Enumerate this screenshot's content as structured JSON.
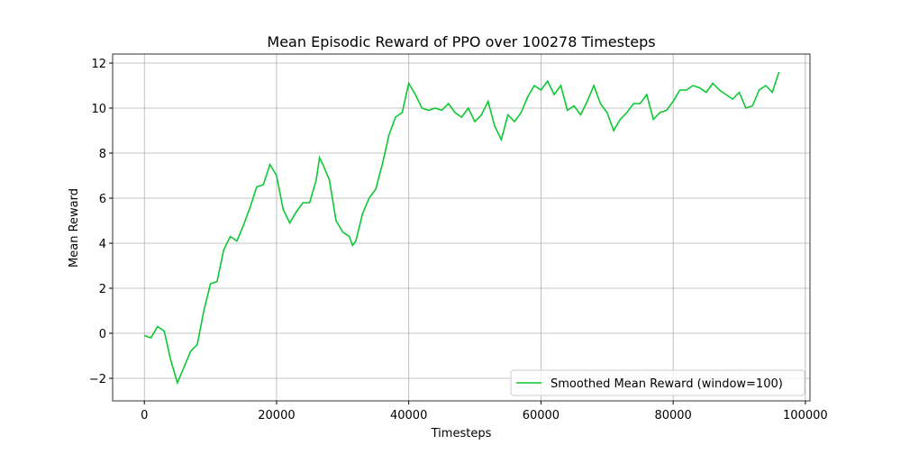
{
  "chart_data": {
    "type": "line",
    "title": "Mean Episodic Reward of PPO over 100278 Timesteps",
    "x_label": "Timesteps",
    "y_label": "Mean Reward",
    "x": [
      0,
      1000,
      2000,
      3000,
      4000,
      5000,
      6000,
      7000,
      8000,
      9000,
      10000,
      11000,
      12000,
      13000,
      14000,
      15000,
      16000,
      17000,
      18000,
      19000,
      20000,
      21000,
      22000,
      23000,
      24000,
      25000,
      26000,
      26500,
      27000,
      28000,
      29000,
      30000,
      31000,
      31500,
      32000,
      33000,
      34000,
      35000,
      36000,
      37000,
      38000,
      39000,
      40000,
      41000,
      42000,
      43000,
      44000,
      45000,
      46000,
      47000,
      48000,
      49000,
      50000,
      51000,
      52000,
      53000,
      54000,
      55000,
      56000,
      57000,
      58000,
      59000,
      60000,
      61000,
      62000,
      63000,
      64000,
      65000,
      66000,
      67000,
      68000,
      69000,
      70000,
      71000,
      72000,
      73000,
      74000,
      75000,
      76000,
      77000,
      78000,
      79000,
      80000,
      81000,
      82000,
      83000,
      84000,
      85000,
      86000,
      87000,
      88000,
      89000,
      90000,
      91000,
      92000,
      93000,
      94000,
      95000,
      96000
    ],
    "series": [
      {
        "name": "Smoothed Mean Reward (window=100)",
        "color": "#0cc832",
        "values": [
          -0.1,
          -0.2,
          0.3,
          0.1,
          -1.2,
          -2.2,
          -1.5,
          -0.8,
          -0.5,
          1.0,
          2.2,
          2.3,
          3.7,
          4.3,
          4.1,
          4.8,
          5.6,
          6.5,
          6.6,
          7.5,
          7.0,
          5.5,
          4.9,
          5.4,
          5.8,
          5.8,
          6.8,
          7.8,
          7.5,
          6.8,
          5.0,
          4.5,
          4.3,
          3.9,
          4.1,
          5.3,
          6.0,
          6.4,
          7.5,
          8.8,
          9.6,
          9.8,
          11.1,
          10.6,
          10.0,
          9.9,
          10.0,
          9.9,
          10.2,
          9.8,
          9.6,
          10.0,
          9.4,
          9.7,
          10.3,
          9.2,
          8.6,
          9.7,
          9.4,
          9.8,
          10.5,
          11.0,
          10.8,
          11.2,
          10.6,
          11.0,
          9.9,
          10.1,
          9.7,
          10.3,
          11.0,
          10.2,
          9.8,
          9.0,
          9.5,
          9.8,
          10.2,
          10.2,
          10.6,
          9.5,
          9.8,
          9.9,
          10.3,
          10.8,
          10.8,
          11.0,
          10.9,
          10.7,
          11.1,
          10.8,
          10.6,
          10.4,
          10.7,
          10.0,
          10.1,
          10.8,
          11.0,
          10.7,
          11.6
        ]
      }
    ],
    "xlim": [
      -4800,
      100700
    ],
    "ylim": [
      -3.0,
      12.4
    ],
    "xticks": [
      0,
      20000,
      40000,
      60000,
      80000,
      100000
    ],
    "yticks": [
      {
        "value": -2,
        "label": "−2"
      },
      0,
      2,
      4,
      6,
      8,
      10,
      12
    ],
    "grid": true,
    "legend": "lower right"
  }
}
